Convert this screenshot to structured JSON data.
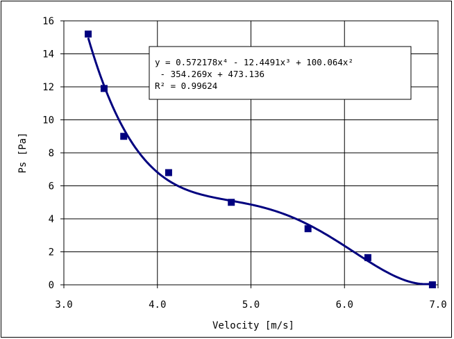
{
  "chart_data": {
    "type": "scatter",
    "title": "",
    "xlabel": "Velocity [m/s]",
    "ylabel": "Ps [Pa]",
    "xlim": [
      3.0,
      7.0
    ],
    "ylim": [
      0,
      16
    ],
    "x_ticks": [
      "3.0",
      "4.0",
      "5.0",
      "6.0",
      "7.0"
    ],
    "y_ticks": [
      "0",
      "2",
      "4",
      "6",
      "8",
      "10",
      "12",
      "14",
      "16"
    ],
    "grid": true,
    "legend": "none",
    "series": [
      {
        "color": "#00007f",
        "marker": "square",
        "points": [
          {
            "x": 3.26,
            "y": 15.2
          },
          {
            "x": 3.43,
            "y": 11.9
          },
          {
            "x": 3.64,
            "y": 9.0
          },
          {
            "x": 4.12,
            "y": 6.8
          },
          {
            "x": 4.79,
            "y": 5.0
          },
          {
            "x": 5.61,
            "y": 3.4
          },
          {
            "x": 6.25,
            "y": 1.65
          },
          {
            "x": 6.94,
            "y": 0.0
          }
        ]
      }
    ],
    "trendline": {
      "coefficients": [
        0.572178,
        -12.4491,
        100.064,
        -354.269,
        473.136
      ],
      "color": "#00007f"
    },
    "annotation": {
      "line1": "y = 0.572178x⁴ - 12.4491x³ + 100.064x²",
      "line2": " - 354.269x + 473.136",
      "line3": "R² = 0.99624"
    }
  }
}
